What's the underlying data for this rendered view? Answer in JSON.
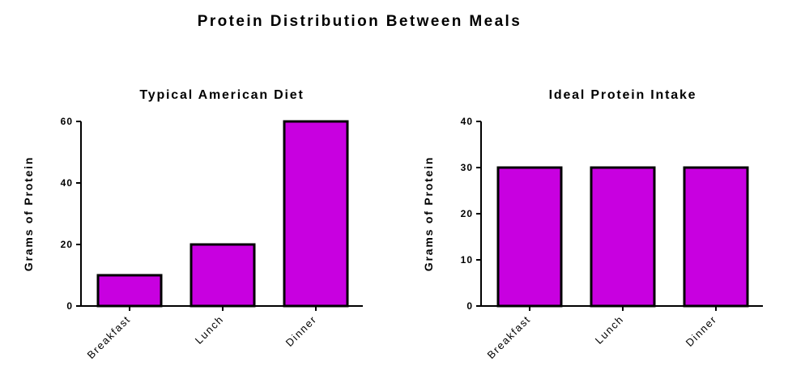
{
  "title": "Protein Distribution Between Meals",
  "bar_color": "#c800e0",
  "chart_data": [
    {
      "type": "bar",
      "title": "Typical American Diet",
      "ylabel": "Grams of Protein",
      "xlabel": "",
      "categories": [
        "Breakfast",
        "Lunch",
        "Dinner"
      ],
      "values": [
        10,
        20,
        60
      ],
      "ylim": [
        0,
        60
      ],
      "yticks": [
        0,
        20,
        40,
        60
      ],
      "grid": false
    },
    {
      "type": "bar",
      "title": "Ideal Protein Intake",
      "ylabel": "Grams of Protein",
      "xlabel": "",
      "categories": [
        "Breakfast",
        "Lunch",
        "Dinner"
      ],
      "values": [
        30,
        30,
        30
      ],
      "ylim": [
        0,
        40
      ],
      "yticks": [
        0,
        10,
        20,
        30,
        40
      ],
      "grid": false
    }
  ]
}
